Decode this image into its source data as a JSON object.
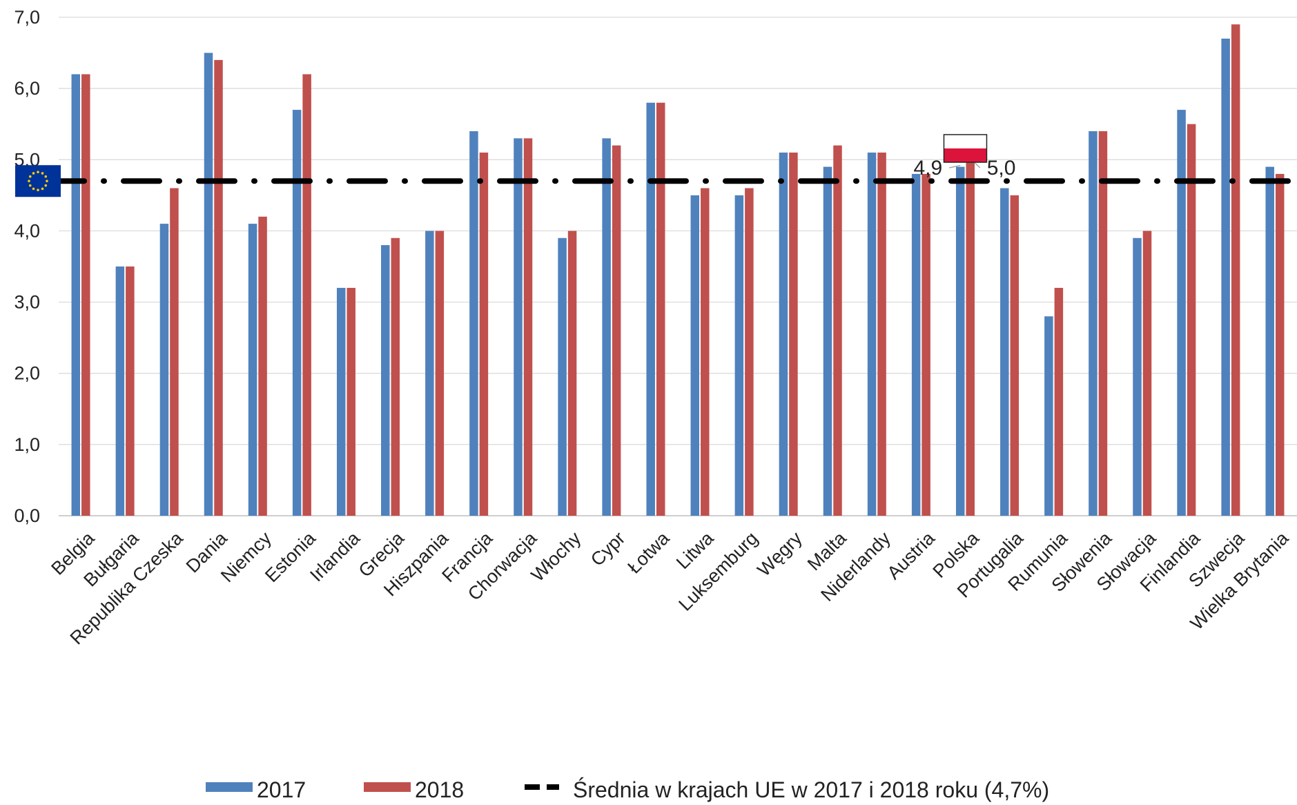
{
  "chart_data": {
    "type": "bar",
    "categories": [
      "Belgia",
      "Bułgaria",
      "Republika Czeska",
      "Dania",
      "Niemcy",
      "Estonia",
      "Irlandia",
      "Grecja",
      "Hiszpania",
      "Francja",
      "Chorwacja",
      "Włochy",
      "Cypr",
      "Łotwa",
      "Litwa",
      "Luksemburg",
      "Węgry",
      "Malta",
      "Niderlandy",
      "Austria",
      "Polska",
      "Portugalia",
      "Rumunia",
      "Słowenia",
      "Słowacja",
      "Finlandia",
      "Szwecja",
      "Wielka Brytania"
    ],
    "series": [
      {
        "name": "2017",
        "color": "#4f81bd",
        "values": [
          6.2,
          3.5,
          4.1,
          6.5,
          4.1,
          5.7,
          3.2,
          3.8,
          4.0,
          5.4,
          5.3,
          3.9,
          5.3,
          5.8,
          4.5,
          4.5,
          5.1,
          4.9,
          5.1,
          4.8,
          4.9,
          4.6,
          2.8,
          5.4,
          3.9,
          5.7,
          6.7,
          4.9
        ]
      },
      {
        "name": "2018",
        "color": "#c0504d",
        "values": [
          6.2,
          3.5,
          4.6,
          6.4,
          4.2,
          6.2,
          3.2,
          3.9,
          4.0,
          5.1,
          5.3,
          4.0,
          5.2,
          5.8,
          4.6,
          4.6,
          5.1,
          5.2,
          5.1,
          4.8,
          5.0,
          4.5,
          3.2,
          5.4,
          4.0,
          5.5,
          6.9,
          4.8
        ]
      }
    ],
    "reference_line": {
      "name": "Średnia w krajach UE w 2017 i 2018 roku (4,7%)",
      "value": 4.7,
      "color": "#000000",
      "style": "dash-dot"
    },
    "yticks": [
      "0,0",
      "1,0",
      "2,0",
      "3,0",
      "4,0",
      "5,0",
      "6,0",
      "7,0"
    ],
    "ylim": [
      0,
      7
    ],
    "grid": true,
    "legend_placement": "bottom",
    "annotations": [
      {
        "category": "Polska",
        "series": "2017",
        "label": "4,9"
      },
      {
        "category": "Polska",
        "series": "2018",
        "label": "5,0"
      }
    ],
    "icons": {
      "eu_flag": "eu-flag-icon",
      "polish_flag": "poland-flag-icon"
    },
    "flag_colors": {
      "eu_blue": "#003399",
      "eu_star": "#ffcc00",
      "pl_white": "#ffffff",
      "pl_red": "#dc143c"
    }
  }
}
